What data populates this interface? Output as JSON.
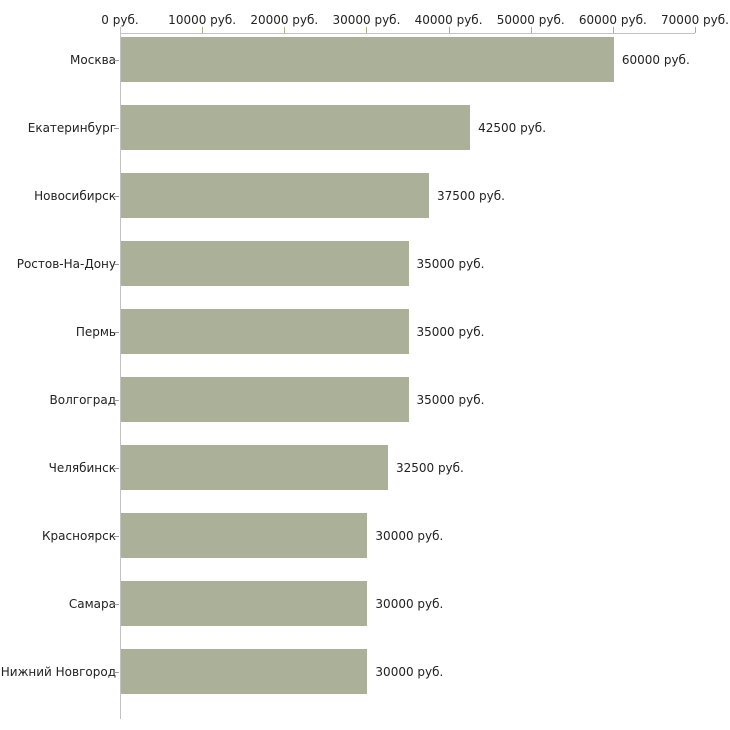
{
  "chart_data": {
    "type": "bar",
    "orientation": "horizontal",
    "categories": [
      "Москва",
      "Екатеринбург",
      "Новосибирск",
      "Ростов-На-Дону",
      "Пермь",
      "Волгоград",
      "Челябинск",
      "Красноярск",
      "Самара",
      "Нижний Новгород"
    ],
    "values": [
      60000,
      42500,
      37500,
      35000,
      35000,
      35000,
      32500,
      30000,
      30000,
      30000
    ],
    "value_labels": [
      "60000 руб.",
      "42500 руб.",
      "37500 руб.",
      "35000 руб.",
      "35000 руб.",
      "35000 руб.",
      "32500 руб.",
      "30000 руб.",
      "30000 руб.",
      "30000 руб."
    ],
    "x_ticks": [
      {
        "value": 0,
        "label": "0 руб."
      },
      {
        "value": 10000,
        "label": "10000 руб."
      },
      {
        "value": 20000,
        "label": "20000 руб."
      },
      {
        "value": 30000,
        "label": "30000 руб."
      },
      {
        "value": 40000,
        "label": "40000 руб."
      },
      {
        "value": 50000,
        "label": "50000 руб."
      },
      {
        "value": 60000,
        "label": "60000 руб."
      },
      {
        "value": 70000,
        "label": "70000 руб."
      }
    ],
    "xlim": [
      0,
      70000
    ],
    "title": "",
    "xlabel": "",
    "ylabel": "",
    "grid": false,
    "legend": false,
    "colors": {
      "bar": "#abb199",
      "axis_line": "#c2c2c2",
      "x_tick": "#aeae82",
      "category_tick": "#999999",
      "text": "#222222"
    }
  }
}
